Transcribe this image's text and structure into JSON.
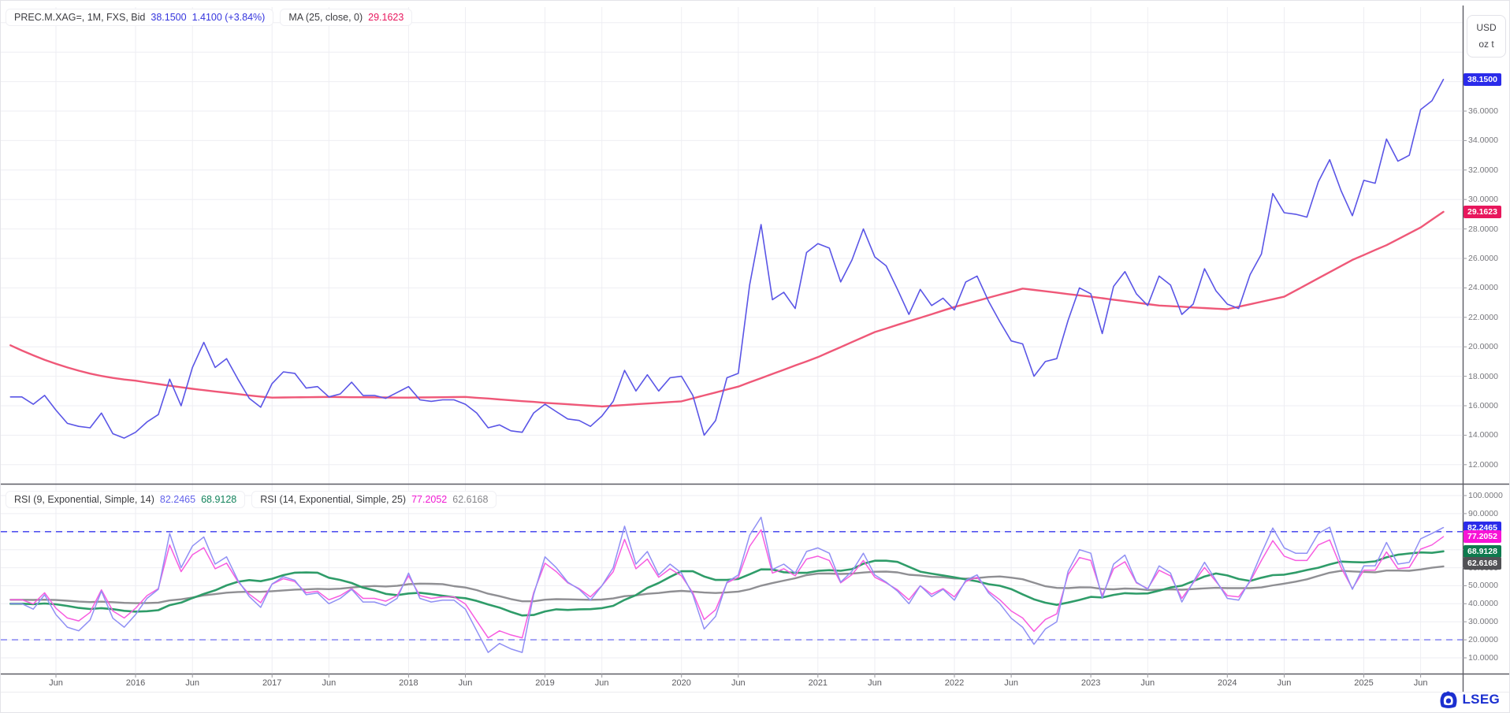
{
  "header": {
    "instrument": "PREC.M.XAG=, 1M, FXS, Bid",
    "last": "38.1500",
    "change": "1.4100 (+3.84%)",
    "ma_label": "MA (25, close, 0)",
    "ma_value": "29.1623"
  },
  "rsi_header": {
    "rsi9_label": "RSI (9, Exponential, Simple, 14)",
    "rsi9_value": "82.2465",
    "rsi9_ma_value": "68.9128",
    "rsi14_label": "RSI (14, Exponential, Simple, 25)",
    "rsi14_value": "77.2052",
    "rsi14_ma_value": "62.6168"
  },
  "unit_box": {
    "line1": "USD",
    "line2": "oz t"
  },
  "logo": {
    "text": "LSEG",
    "color": "#1b2fd0"
  },
  "price_axis": {
    "ticks": [
      {
        "label": "36.0000",
        "v": 36
      },
      {
        "label": "34.0000",
        "v": 34
      },
      {
        "label": "32.0000",
        "v": 32
      },
      {
        "label": "30.0000",
        "v": 30
      },
      {
        "label": "28.0000",
        "v": 28
      },
      {
        "label": "26.0000",
        "v": 26
      },
      {
        "label": "24.0000",
        "v": 24
      },
      {
        "label": "22.0000",
        "v": 22
      },
      {
        "label": "20.0000",
        "v": 20
      },
      {
        "label": "18.0000",
        "v": 18
      },
      {
        "label": "16.0000",
        "v": 16
      },
      {
        "label": "14.0000",
        "v": 14
      },
      {
        "label": "12.0000",
        "v": 12
      }
    ]
  },
  "rsi_axis": {
    "ticks": [
      {
        "label": "100.0000",
        "v": 100
      },
      {
        "label": "90.0000",
        "v": 90
      },
      {
        "label": "80.0000",
        "v": 80
      },
      {
        "label": "70.0000",
        "v": 70
      },
      {
        "label": "60.0000",
        "v": 60
      },
      {
        "label": "50.0000",
        "v": 50
      },
      {
        "label": "40.0000",
        "v": 40
      },
      {
        "label": "30.0000",
        "v": 30
      },
      {
        "label": "20.0000",
        "v": 20
      },
      {
        "label": "10.0000",
        "v": 10
      }
    ]
  },
  "badges": [
    {
      "name": "price-last-badge",
      "text": "38.1500",
      "panel": "price",
      "v": 38.15,
      "bg": "#2b2bea"
    },
    {
      "name": "ma-value-badge",
      "text": "29.1623",
      "panel": "price",
      "v": 29.1623,
      "bg": "#e8175d"
    },
    {
      "name": "rsi9-value-badge",
      "text": "82.2465",
      "panel": "rsi",
      "v": 82.2465,
      "bg": "#2b2bea"
    },
    {
      "name": "rsi14-value-badge",
      "text": "77.2052",
      "panel": "rsi",
      "v": 77.2052,
      "bg": "#f714d6"
    },
    {
      "name": "rsi9-ma-badge",
      "text": "68.9128",
      "panel": "rsi",
      "v": 68.9128,
      "bg": "#0e7a4e"
    },
    {
      "name": "rsi14-ma-badge",
      "text": "62.6168",
      "panel": "rsi",
      "v": 62.6168,
      "bg": "#515155"
    }
  ],
  "time_axis": {
    "ticks": [
      {
        "label": "Jun",
        "m": 4
      },
      {
        "label": "2016",
        "m": 11
      },
      {
        "label": "Jun",
        "m": 16
      },
      {
        "label": "2017",
        "m": 23
      },
      {
        "label": "Jun",
        "m": 28
      },
      {
        "label": "2018",
        "m": 35
      },
      {
        "label": "Jun",
        "m": 40
      },
      {
        "label": "2019",
        "m": 47
      },
      {
        "label": "Jun",
        "m": 52
      },
      {
        "label": "2020",
        "m": 59
      },
      {
        "label": "Jun",
        "m": 64
      },
      {
        "label": "2021",
        "m": 71
      },
      {
        "label": "Jun",
        "m": 76
      },
      {
        "label": "2022",
        "m": 83
      },
      {
        "label": "Jun",
        "m": 88
      },
      {
        "label": "2023",
        "m": 95
      },
      {
        "label": "Jun",
        "m": 100
      },
      {
        "label": "2024",
        "m": 107
      },
      {
        "label": "Jun",
        "m": 112
      },
      {
        "label": "2025",
        "m": 119
      },
      {
        "label": "Jun",
        "m": 124
      }
    ]
  },
  "chart_data": {
    "type": "line",
    "x_start": "2015-02",
    "x_end": "2025-08",
    "x_freq": "monthly",
    "bands_color": "#5353ef",
    "panels": [
      {
        "name": "price",
        "ylabel": "USD oz t",
        "ylim_labeled": [
          12,
          36
        ],
        "series": [
          {
            "name": "price-bid",
            "color": "#5a55e6",
            "values": [
              16.6,
              16.6,
              16.1,
              16.7,
              15.7,
              14.8,
              14.6,
              14.5,
              15.5,
              14.1,
              13.8,
              14.2,
              14.9,
              15.4,
              17.8,
              16.0,
              18.6,
              20.3,
              18.6,
              19.2,
              17.8,
              16.5,
              15.9,
              17.5,
              18.3,
              18.2,
              17.2,
              17.3,
              16.6,
              16.8,
              17.6,
              16.7,
              16.7,
              16.5,
              16.9,
              17.3,
              16.4,
              16.3,
              16.4,
              16.4,
              16.1,
              15.5,
              14.5,
              14.7,
              14.3,
              14.2,
              15.5,
              16.1,
              15.6,
              15.1,
              15.0,
              14.6,
              15.3,
              16.3,
              18.4,
              17.0,
              18.1,
              17.0,
              17.9,
              18.0,
              16.7,
              14.0,
              15.0,
              17.9,
              18.2,
              24.2,
              28.3,
              23.2,
              23.7,
              22.6,
              26.4,
              27.0,
              26.7,
              24.4,
              25.9,
              28.0,
              26.1,
              25.5,
              23.9,
              22.2,
              23.9,
              22.8,
              23.3,
              22.5,
              24.4,
              24.8,
              23.1,
              21.7,
              20.4,
              20.2,
              18.0,
              19.0,
              19.2,
              21.8,
              24.0,
              23.6,
              20.9,
              24.1,
              25.1,
              23.6,
              22.8,
              24.8,
              24.2,
              22.2,
              22.9,
              25.3,
              23.8,
              22.9,
              22.6,
              24.9,
              26.3,
              30.4,
              29.1,
              29.0,
              28.8,
              31.2,
              32.7,
              30.6,
              28.9,
              31.3,
              31.1,
              34.1,
              32.6,
              33.0,
              36.1,
              36.7,
              38.15
            ]
          },
          {
            "name": "ma-25-close",
            "color": "#ef5878",
            "values": [
              20.1,
              19.75,
              19.42,
              19.12,
              18.85,
              18.6,
              18.38,
              18.18,
              18.02,
              17.89,
              17.78,
              17.7,
              17.58,
              17.47,
              17.36,
              17.25,
              17.15,
              17.06,
              16.97,
              16.88,
              16.79,
              16.7,
              16.62,
              16.55,
              16.56,
              16.57,
              16.58,
              16.59,
              16.6,
              16.59,
              16.58,
              16.58,
              16.57,
              16.56,
              16.55,
              16.55,
              16.56,
              16.57,
              16.58,
              16.59,
              16.6,
              16.54,
              16.49,
              16.43,
              16.37,
              16.31,
              16.26,
              16.2,
              16.15,
              16.1,
              16.05,
              16.0,
              15.95,
              16.0,
              16.05,
              16.1,
              16.15,
              16.2,
              16.25,
              16.3,
              16.5,
              16.7,
              16.9,
              17.1,
              17.3,
              17.59,
              17.87,
              18.16,
              18.44,
              18.73,
              19.01,
              19.3,
              19.64,
              19.98,
              20.32,
              20.66,
              21.0,
              21.24,
              21.49,
              21.73,
              21.97,
              22.21,
              22.46,
              22.7,
              22.91,
              23.12,
              23.33,
              23.54,
              23.74,
              23.95,
              23.86,
              23.77,
              23.68,
              23.58,
              23.49,
              23.4,
              23.3,
              23.2,
              23.1,
              23.0,
              22.9,
              22.8,
              22.76,
              22.72,
              22.67,
              22.63,
              22.59,
              22.55,
              22.72,
              22.89,
              23.06,
              23.23,
              23.4,
              23.82,
              24.23,
              24.65,
              25.07,
              25.48,
              25.9,
              26.23,
              26.57,
              26.9,
              27.3,
              27.7,
              28.1,
              28.63,
              29.16
            ]
          }
        ]
      },
      {
        "name": "rsi",
        "ylim": [
          0,
          100
        ],
        "bands": [
          80,
          20
        ],
        "series": [
          {
            "name": "rsi-9",
            "color": "#9090f4",
            "values": [
              40,
              40,
              37,
              45,
              34,
              27,
              25,
              31,
              47,
              32,
              27,
              34,
              43,
              48,
              79,
              60,
              72,
              77,
              62,
              66,
              53,
              44,
              38,
              51,
              55,
              53,
              45,
              46,
              40,
              43,
              48,
              41,
              41,
              39,
              43,
              57,
              43,
              41,
              42,
              42,
              37,
              25,
              13,
              18,
              15,
              13,
              45,
              66,
              60,
              52,
              48,
              42,
              50,
              60,
              83,
              62,
              69,
              56,
              62,
              57,
              45,
              26,
              33,
              52,
              56,
              78,
              88,
              59,
              62,
              57,
              69,
              71,
              68,
              52,
              58,
              68,
              56,
              52,
              47,
              40,
              50,
              44,
              48,
              42,
              53,
              56,
              46,
              40,
              32,
              27,
              17.5,
              26,
              30,
              58,
              70,
              68,
              43,
              62,
              67,
              52,
              48,
              61,
              57,
              41,
              52,
              63,
              53,
              43,
              42,
              53,
              68,
              82,
              71,
              68,
              68,
              79,
              82.5,
              63,
              48,
              61,
              61,
              74,
              62,
              63,
              76,
              79,
              82.25
            ]
          },
          {
            "name": "rsi-14",
            "color": "#f75ce0",
            "values": [
              42.2,
              42.2,
              39.9,
              46.1,
              37.5,
              32.1,
              30.5,
              35.2,
              47.7,
              36,
              32.1,
              37.5,
              44.5,
              48.4,
              72.6,
              57.8,
              67.2,
              71.1,
              59.4,
              62.5,
              52.3,
              45.3,
              40.6,
              50.8,
              53.9,
              52.3,
              46.1,
              46.9,
              42.2,
              44.5,
              48.4,
              43,
              43,
              41.4,
              44.5,
              55.5,
              44.5,
              43,
              43.8,
              43.8,
              39.9,
              30.5,
              21.1,
              25,
              22.7,
              21.1,
              46.1,
              62.5,
              57.8,
              51.6,
              48.4,
              43.8,
              50,
              57.8,
              75.7,
              59.4,
              64.8,
              54.7,
              59.4,
              55.5,
              46.1,
              31.3,
              36.7,
              51.6,
              54.7,
              71.8,
              81,
              57,
              59.4,
              55.5,
              64.8,
              66.4,
              64,
              51.6,
              56.2,
              64,
              54.7,
              51.6,
              47.7,
              42.2,
              50,
              45.3,
              48.4,
              43.8,
              52.3,
              54.7,
              46.9,
              42.2,
              36,
              32.1,
              24.7,
              31.3,
              34.4,
              56.2,
              65.6,
              64,
              44.5,
              59.4,
              63.3,
              51.6,
              48.4,
              58.6,
              55.5,
              43,
              51.6,
              60.1,
              52.3,
              44.5,
              43.8,
              52.3,
              64,
              75,
              66.4,
              64,
              64,
              72.6,
              75.4,
              60.1,
              48.4,
              58.6,
              58.6,
              68.7,
              59.4,
              60.1,
              70.3,
              72.6,
              77.21
            ]
          },
          {
            "name": "rsi-9-sma-14",
            "color": "#2f9c69",
            "derived": "sma14(rsi-9)"
          },
          {
            "name": "rsi-14-sma-25",
            "color": "#8f8f93",
            "derived": "sma25(rsi-14)"
          }
        ]
      }
    ]
  }
}
